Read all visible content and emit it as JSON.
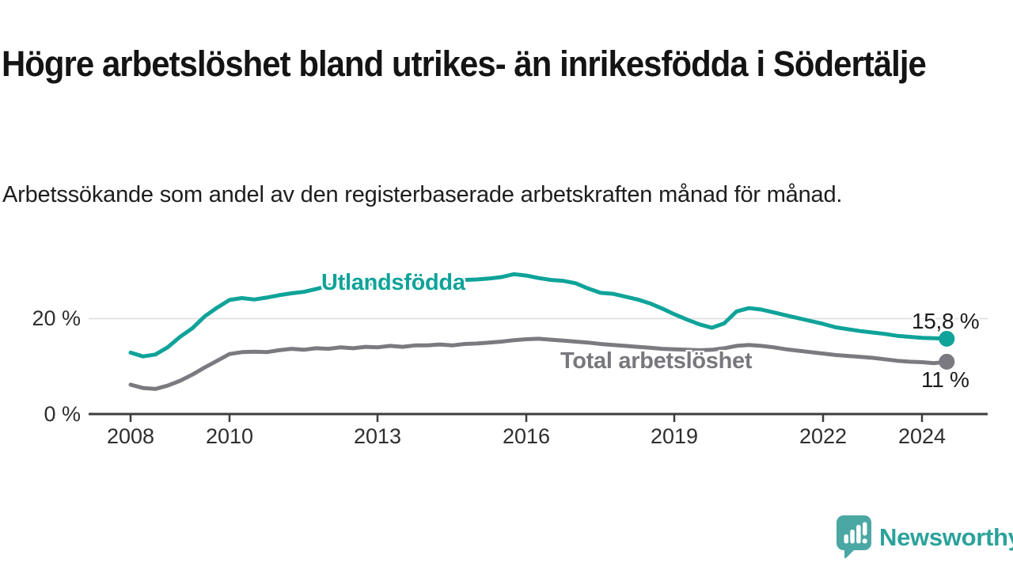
{
  "header": {
    "title": "Högre arbetslöshet bland utrikes- än inrikesfödda i Södertälje",
    "subtitle": "Arbetssökande som andel av den registerbaserade arbetskraften månad för månad."
  },
  "axis": {
    "years": [
      "2008",
      "2010",
      "2013",
      "2016",
      "2019",
      "2022",
      "2024"
    ]
  },
  "branding": {
    "name": "Newsworthy",
    "icon": "newsworthy-chart-speech-bubble-icon",
    "icon_color": "#4ba7a3",
    "text_color": "#2ba29b"
  },
  "chart_data": {
    "type": "line",
    "title": "Högre arbetslöshet bland utrikes- än inrikesfödda i Södertälje",
    "subtitle": "Arbetssökande som andel av den registerbaserade arbetskraften månad för månad.",
    "xlabel": "",
    "ylabel": "",
    "xlim": [
      2007.15,
      2025.35
    ],
    "ylim": [
      0,
      32
    ],
    "grid": "single horizontal gridline at 20 %",
    "legend": "inline labels on lines",
    "xticks": [
      2008,
      2010,
      2013,
      2016,
      2019,
      2022,
      2024
    ],
    "yticks": [
      {
        "value": 0,
        "label": "0 %",
        "gridline": false
      },
      {
        "value": 20,
        "label": "20 %",
        "gridline": true
      }
    ],
    "x": [
      2008,
      2008.25,
      2008.5,
      2008.75,
      2009,
      2009.25,
      2009.5,
      2009.75,
      2010,
      2010.25,
      2010.5,
      2010.75,
      2011,
      2011.25,
      2011.5,
      2011.75,
      2012,
      2012.25,
      2012.5,
      2012.75,
      2013,
      2013.25,
      2013.5,
      2013.75,
      2014,
      2014.25,
      2014.5,
      2014.75,
      2015,
      2015.25,
      2015.5,
      2015.75,
      2016,
      2016.25,
      2016.5,
      2016.75,
      2017,
      2017.25,
      2017.5,
      2017.75,
      2018,
      2018.25,
      2018.5,
      2018.75,
      2019,
      2019.25,
      2019.5,
      2019.75,
      2020,
      2020.25,
      2020.5,
      2020.75,
      2021,
      2021.25,
      2021.5,
      2021.75,
      2022,
      2022.25,
      2022.5,
      2022.75,
      2023,
      2023.25,
      2023.5,
      2023.75,
      2024,
      2024.25,
      2024.5
    ],
    "series": [
      {
        "name": "Utlandsfödda",
        "color": "#0fa399",
        "end_label": "15,8 %",
        "end_value": 15.8,
        "values": [
          12.9,
          12.1,
          12.5,
          14.0,
          16.2,
          18.0,
          20.5,
          22.3,
          23.9,
          24.3,
          24.0,
          24.4,
          24.9,
          25.3,
          25.6,
          26.2,
          26.9,
          26.8,
          27.1,
          27.3,
          27.2,
          27.5,
          27.4,
          27.7,
          27.9,
          28.0,
          27.8,
          28.1,
          28.2,
          28.4,
          28.7,
          29.3,
          29.0,
          28.5,
          28.1,
          27.9,
          27.4,
          26.3,
          25.4,
          25.2,
          24.6,
          24.0,
          23.2,
          22.1,
          20.9,
          19.8,
          18.8,
          18.1,
          19.0,
          21.5,
          22.2,
          21.9,
          21.3,
          20.7,
          20.1,
          19.5,
          18.9,
          18.2,
          17.8,
          17.4,
          17.1,
          16.8,
          16.4,
          16.2,
          16.0,
          15.9,
          15.8
        ]
      },
      {
        "name": "Total arbetslöshet",
        "color": "#7a7a80",
        "end_label": "11 %",
        "end_value": 11,
        "values": [
          6.2,
          5.5,
          5.3,
          6.0,
          7.0,
          8.3,
          9.8,
          11.2,
          12.6,
          13.0,
          13.1,
          13.0,
          13.4,
          13.7,
          13.5,
          13.8,
          13.7,
          14.0,
          13.8,
          14.1,
          14.0,
          14.3,
          14.1,
          14.4,
          14.4,
          14.6,
          14.4,
          14.7,
          14.8,
          15.0,
          15.2,
          15.5,
          15.7,
          15.8,
          15.6,
          15.4,
          15.2,
          15.0,
          14.7,
          14.5,
          14.3,
          14.1,
          13.9,
          13.7,
          13.6,
          13.5,
          13.4,
          13.5,
          13.8,
          14.3,
          14.5,
          14.3,
          14.0,
          13.6,
          13.3,
          13.0,
          12.7,
          12.4,
          12.2,
          12.0,
          11.8,
          11.5,
          11.2,
          11.0,
          10.9,
          10.7,
          11.0
        ]
      }
    ]
  }
}
